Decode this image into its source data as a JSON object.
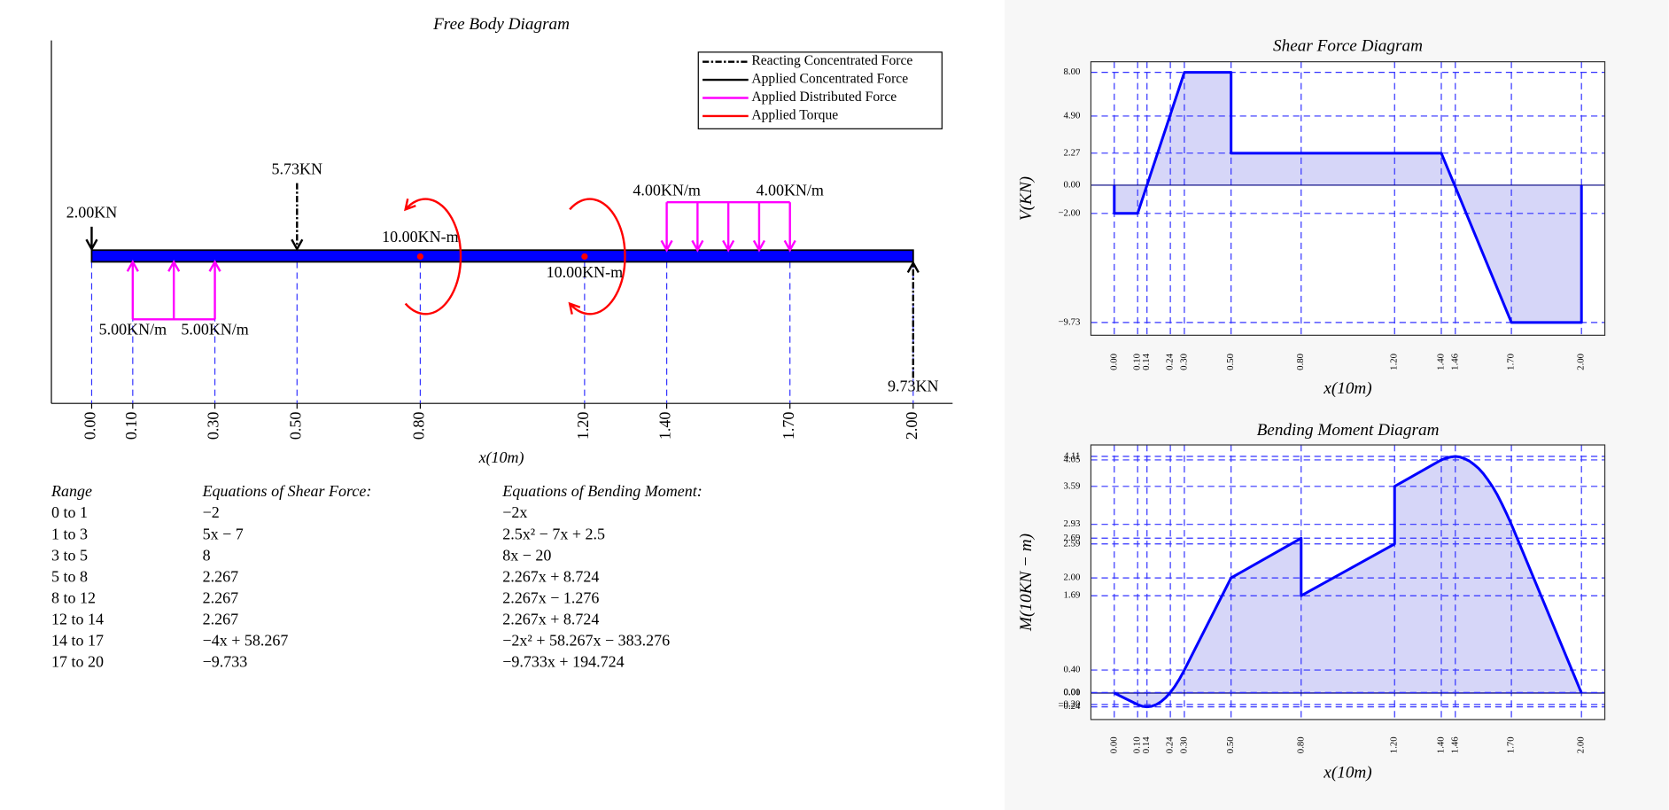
{
  "free_body_diagram": {
    "title": "Free Body Diagram",
    "xlabel": "x(10m)",
    "xlim": [
      -0.098,
      2.096
    ],
    "beam_span": [
      0,
      2.0
    ],
    "grid": true,
    "xticks": [
      {
        "value": 0,
        "label": "0.00"
      },
      {
        "value": 0.1,
        "label": "0.10"
      },
      {
        "value": 0.3,
        "label": "0.30"
      },
      {
        "value": 0.5,
        "label": "0.50"
      },
      {
        "value": 0.8,
        "label": "0.80"
      },
      {
        "value": 1.2,
        "label": "1.20"
      },
      {
        "value": 1.4,
        "label": "1.40"
      },
      {
        "value": 1.7,
        "label": "1.70"
      },
      {
        "value": 2.0,
        "label": "2.00"
      }
    ],
    "legend": [
      {
        "label": "Reacting Concentrated Force",
        "color": "#000000",
        "dashed": true
      },
      {
        "label": "Applied Concentrated Force",
        "color": "#000000",
        "dashed": false
      },
      {
        "label": "Applied Distributed Force",
        "color": "#ff00ff",
        "dashed": false
      },
      {
        "label": "Applied Torque",
        "color": "#ff0000",
        "dashed": false
      }
    ],
    "concentrated_forces": [
      {
        "position": 0,
        "label": "2.00KN",
        "reacting": false,
        "direction": -1
      },
      {
        "position": 0.5,
        "label": "5.73KN",
        "reacting": true,
        "direction": -1
      },
      {
        "position": 2.0,
        "label": "9.73KN",
        "reacting": true,
        "direction": 1
      }
    ],
    "distributed_forces": [
      {
        "start": 0.1,
        "end": 0.3,
        "labels": [
          "5.00KN/m",
          "5.00KN/m"
        ],
        "direction": 1,
        "arrow_count": 3
      },
      {
        "start": 1.4,
        "end": 1.7,
        "labels": [
          "4.00KN/m",
          "4.00KN/m"
        ],
        "direction": -1,
        "arrow_count": 5
      }
    ],
    "torques": [
      {
        "position": 0.8,
        "label": "10.00KN-m",
        "direction": 1
      },
      {
        "position": 1.2,
        "label": "10.00KN-m",
        "direction": -1
      }
    ]
  },
  "equations": {
    "headers": [
      "Range",
      "Equations of Shear Force:",
      "Equations of Bending Moment:"
    ],
    "rows": [
      [
        "0 to 1",
        "−2",
        "−2x"
      ],
      [
        "1 to 3",
        "5x − 7",
        "2.5x² − 7x + 2.5"
      ],
      [
        "3 to 5",
        "8",
        "8x − 20"
      ],
      [
        "5 to 8",
        "2.267",
        "2.267x + 8.724"
      ],
      [
        "8 to 12",
        "2.267",
        "2.267x − 1.276"
      ],
      [
        "12 to 14",
        "2.267",
        "2.267x + 8.724"
      ],
      [
        "14 to 17",
        "−4x + 58.267",
        "−2x² + 58.267x − 383.276"
      ],
      [
        "17 to 20",
        "−9.733",
        "−9.733x + 194.724"
      ]
    ]
  },
  "chart_data": [
    {
      "type": "area",
      "title": "Shear Force Diagram",
      "xlabel": "x(10m)",
      "ylabel": "V(KN)",
      "color": "#0000ff",
      "fill_color": "#d6d6f8",
      "grid": true,
      "x": [
        0,
        0,
        0.1,
        0.3,
        0.5,
        0.5,
        1.4,
        1.7,
        2.0,
        2.0
      ],
      "values": [
        0,
        -2,
        -2,
        8,
        8,
        2.27,
        2.27,
        -9.73,
        -9.73,
        0
      ],
      "xlim": [
        -0.1,
        2.1
      ],
      "ylim": [
        -10.64,
        8.75
      ],
      "xticks": [
        {
          "value": 0,
          "label": "0.00"
        },
        {
          "value": 0.1,
          "label": "0.10"
        },
        {
          "value": 0.14,
          "label": "0.14"
        },
        {
          "value": 0.24,
          "label": "0.24"
        },
        {
          "value": 0.3,
          "label": "0.30"
        },
        {
          "value": 0.5,
          "label": "0.50"
        },
        {
          "value": 0.8,
          "label": "0.80"
        },
        {
          "value": 1.2,
          "label": "1.20"
        },
        {
          "value": 1.4,
          "label": "1.40"
        },
        {
          "value": 1.46,
          "label": "1.46"
        },
        {
          "value": 1.7,
          "label": "1.70"
        },
        {
          "value": 2.0,
          "label": "2.00"
        }
      ],
      "yticks": [
        {
          "value": -9.73,
          "label": "−9.73"
        },
        {
          "value": -2,
          "label": "−2.00"
        },
        {
          "value": 0,
          "label": "0.00"
        },
        {
          "value": 2.27,
          "label": "2.27"
        },
        {
          "value": 4.9,
          "label": "4.90"
        },
        {
          "value": 8,
          "label": "8.00"
        }
      ]
    },
    {
      "type": "area",
      "title": "Bending Moment Diagram",
      "xlabel": "x(10m)",
      "ylabel": "M(10KN − m)",
      "color": "#0000ff",
      "fill_color": "#d6d6f8",
      "grid": true,
      "x": [
        0,
        0.1,
        0.12,
        0.14,
        0.16,
        0.18,
        0.2,
        0.22,
        0.24,
        0.26,
        0.28,
        0.3,
        0.5,
        0.8,
        0.8,
        1.2,
        1.2,
        1.4,
        1.42,
        1.44,
        1.46,
        1.48,
        1.5,
        1.52,
        1.54,
        1.56,
        1.58,
        1.6,
        1.62,
        1.64,
        1.66,
        1.68,
        1.7,
        2.0
      ],
      "values": [
        0,
        -0.2,
        -0.23,
        -0.24,
        -0.23,
        -0.2,
        -0.15,
        -0.08,
        0.01,
        0.12,
        0.25,
        0.4,
        2.0,
        2.69,
        1.69,
        2.59,
        3.59,
        4.05,
        4.08,
        4.1,
        4.11,
        4.1,
        4.07,
        4.03,
        3.97,
        3.9,
        3.81,
        3.7,
        3.58,
        3.44,
        3.28,
        3.11,
        2.93,
        0
      ],
      "xlim": [
        -0.1,
        2.1
      ],
      "ylim": [
        -0.46,
        4.31
      ],
      "xticks": [
        {
          "value": 0,
          "label": "0.00"
        },
        {
          "value": 0.1,
          "label": "0.10"
        },
        {
          "value": 0.14,
          "label": "0.14"
        },
        {
          "value": 0.24,
          "label": "0.24"
        },
        {
          "value": 0.3,
          "label": "0.30"
        },
        {
          "value": 0.5,
          "label": "0.50"
        },
        {
          "value": 0.8,
          "label": "0.80"
        },
        {
          "value": 1.2,
          "label": "1.20"
        },
        {
          "value": 1.4,
          "label": "1.40"
        },
        {
          "value": 1.46,
          "label": "1.46"
        },
        {
          "value": 1.7,
          "label": "1.70"
        },
        {
          "value": 2.0,
          "label": "2.00"
        }
      ],
      "yticks": [
        {
          "value": -0.24,
          "label": "−0.24"
        },
        {
          "value": -0.2,
          "label": "−0.20"
        },
        {
          "value": 0,
          "label": "0.00"
        },
        {
          "value": 0.01,
          "label": "0.01"
        },
        {
          "value": 0.4,
          "label": "0.40"
        },
        {
          "value": 1.69,
          "label": "1.69"
        },
        {
          "value": 2.0,
          "label": "2.00"
        },
        {
          "value": 2.59,
          "label": "2.59"
        },
        {
          "value": 2.69,
          "label": "2.69"
        },
        {
          "value": 2.93,
          "label": "2.93"
        },
        {
          "value": 3.59,
          "label": "3.59"
        },
        {
          "value": 4.05,
          "label": "4.05"
        },
        {
          "value": 4.11,
          "label": "4.11"
        }
      ]
    }
  ]
}
